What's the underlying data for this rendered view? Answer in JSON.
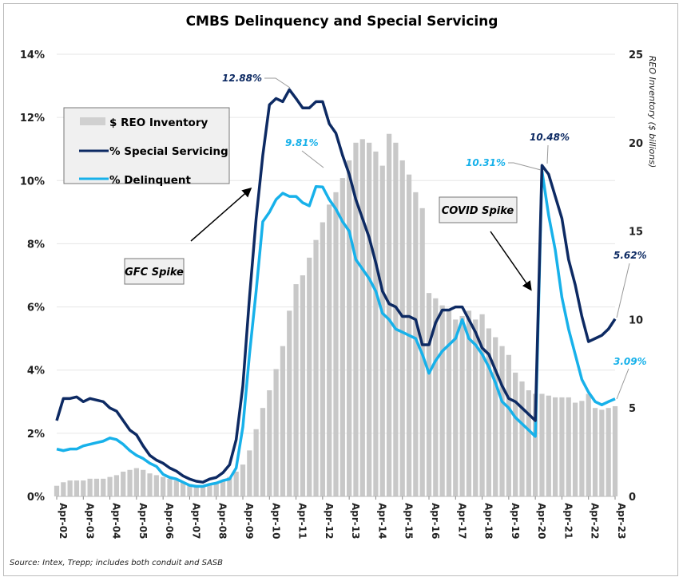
{
  "chart_data": {
    "type": "bar+line",
    "title": "CMBS Delinquency and Special Servicing",
    "y_left": {
      "range": [
        0,
        14
      ],
      "ticks": [
        "0%",
        "2%",
        "4%",
        "6%",
        "8%",
        "10%",
        "12%",
        "14%"
      ]
    },
    "y_right": {
      "label": "REO Inventory ($ billions)",
      "range": [
        0,
        25
      ],
      "ticks": [
        "0",
        "5",
        "10",
        "15",
        "20",
        "25"
      ]
    },
    "x_tick_labels": [
      "Apr-02",
      "Apr-03",
      "Apr-04",
      "Apr-05",
      "Apr-06",
      "Apr-07",
      "Apr-08",
      "Apr-09",
      "Apr-10",
      "Apr-11",
      "Apr-12",
      "Apr-13",
      "Apr-14",
      "Apr-15",
      "Apr-16",
      "Apr-17",
      "Apr-18",
      "Apr-19",
      "Apr-20",
      "Apr-21",
      "Apr-22",
      "Apr-23"
    ],
    "x_start": "Apr-02",
    "x_step": "quarter",
    "grid": "horizontal",
    "legend_placement": "top-left",
    "series": [
      {
        "name": "$ REO Inventory",
        "kind": "bar",
        "axis": "right",
        "color": "#c8c8c8",
        "values": [
          0.6,
          0.8,
          0.9,
          0.9,
          0.9,
          1.0,
          1.0,
          1.0,
          1.1,
          1.2,
          1.4,
          1.5,
          1.6,
          1.5,
          1.3,
          1.2,
          1.1,
          1.0,
          0.9,
          0.8,
          0.7,
          0.6,
          0.6,
          0.7,
          0.8,
          0.9,
          1.1,
          1.4,
          1.8,
          2.6,
          3.8,
          5.0,
          6.0,
          7.2,
          8.5,
          10.5,
          12.0,
          12.5,
          13.5,
          14.5,
          15.5,
          16.5,
          17.2,
          18.0,
          19.0,
          20.0,
          20.2,
          20.0,
          19.5,
          18.7,
          20.5,
          20.0,
          19.0,
          18.2,
          17.2,
          16.3,
          11.5,
          11.2,
          10.8,
          10.5,
          10.0,
          10.2,
          10.5,
          10.0,
          10.3,
          9.5,
          9.0,
          8.5,
          8.0,
          7.0,
          6.5,
          6.0,
          5.8,
          5.8,
          5.7,
          5.6,
          5.6,
          5.6,
          5.3,
          5.4,
          5.8,
          5.0,
          4.9,
          5.0,
          5.1
        ]
      },
      {
        "name": "% Special Servicing",
        "kind": "line",
        "axis": "left",
        "color": "#0d2a63",
        "values": [
          2.4,
          3.1,
          3.1,
          3.15,
          3.0,
          3.1,
          3.05,
          3.0,
          2.8,
          2.7,
          2.4,
          2.1,
          1.95,
          1.6,
          1.3,
          1.15,
          1.05,
          0.9,
          0.8,
          0.65,
          0.55,
          0.48,
          0.45,
          0.55,
          0.6,
          0.75,
          1.0,
          1.8,
          3.5,
          6.3,
          8.8,
          10.8,
          12.4,
          12.6,
          12.5,
          12.88,
          12.6,
          12.3,
          12.3,
          12.5,
          12.5,
          11.8,
          11.5,
          10.8,
          10.2,
          9.4,
          8.8,
          8.2,
          7.4,
          6.5,
          6.1,
          6.0,
          5.7,
          5.7,
          5.6,
          4.8,
          4.8,
          5.5,
          5.9,
          5.9,
          6.0,
          6.0,
          5.6,
          5.2,
          4.7,
          4.5,
          4.0,
          3.5,
          3.1,
          3.0,
          2.8,
          2.6,
          2.4,
          10.48,
          10.2,
          9.5,
          8.8,
          7.5,
          6.7,
          5.7,
          4.9,
          5.0,
          5.1,
          5.3,
          5.62
        ]
      },
      {
        "name": "% Delinquent",
        "kind": "line",
        "axis": "left",
        "color": "#17b1ea",
        "values": [
          1.5,
          1.45,
          1.5,
          1.5,
          1.6,
          1.65,
          1.7,
          1.75,
          1.85,
          1.8,
          1.65,
          1.45,
          1.3,
          1.2,
          1.05,
          0.95,
          0.7,
          0.6,
          0.55,
          0.45,
          0.35,
          0.32,
          0.32,
          0.38,
          0.42,
          0.5,
          0.55,
          0.9,
          2.2,
          4.5,
          6.5,
          8.7,
          9.0,
          9.4,
          9.6,
          9.5,
          9.5,
          9.3,
          9.2,
          9.81,
          9.8,
          9.4,
          9.1,
          8.7,
          8.4,
          7.5,
          7.2,
          6.9,
          6.5,
          5.8,
          5.6,
          5.3,
          5.2,
          5.1,
          5.0,
          4.5,
          3.9,
          4.3,
          4.6,
          4.8,
          5.0,
          5.6,
          5.0,
          4.8,
          4.5,
          4.1,
          3.6,
          3.0,
          2.8,
          2.5,
          2.3,
          2.1,
          1.9,
          10.31,
          8.9,
          7.8,
          6.3,
          5.3,
          4.5,
          3.7,
          3.3,
          3.0,
          2.9,
          3.0,
          3.09
        ]
      }
    ],
    "annotations": {
      "ss_peak_gfc": "12.88%",
      "dq_peak_gfc": "9.81%",
      "ss_peak_covid": "10.48%",
      "dq_peak_covid": "10.31%",
      "ss_latest": "5.62%",
      "dq_latest": "3.09%",
      "gfc_box": "GFC Spike",
      "covid_box": "COVID Spike"
    },
    "source": "Source: Intex, Trepp; includes both conduit and SASB"
  }
}
